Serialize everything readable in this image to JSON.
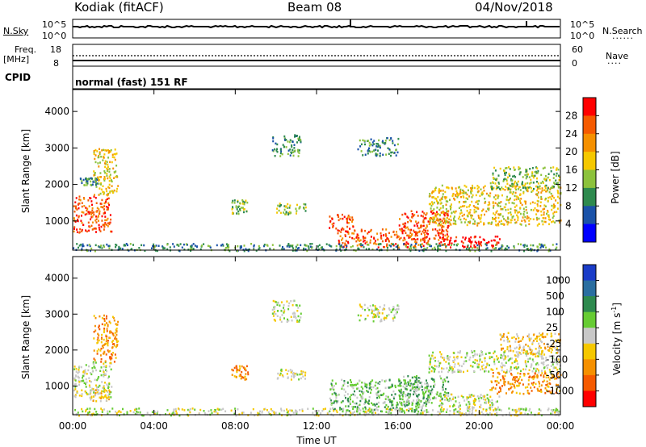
{
  "header": {
    "station": "Kodiak (fitACF)",
    "beam": "Beam 08",
    "date": "04/Nov/2018"
  },
  "nsky_panel": {
    "left_label": "N.Sky",
    "right_label": "N.Search",
    "ticks_left": [
      "10^5",
      "10^0"
    ],
    "ticks_right": [
      "10^5",
      "10^0"
    ]
  },
  "freq_panel": {
    "label_line1": "Freq.",
    "label_line2": "[MHz]",
    "ticks_left": [
      "18",
      "8"
    ],
    "ticks_right": [
      "60",
      "0"
    ],
    "right_label": "Nave"
  },
  "cpid_panel": {
    "label": "CPID",
    "mode": "normal (fast) 151 RF"
  },
  "chart_data": [
    {
      "type": "heatmap",
      "name": "power",
      "ylabel": "Slant Range [km]",
      "yticks": [
        "1000",
        "2000",
        "3000",
        "4000"
      ],
      "ylim": [
        200,
        4600
      ],
      "colorbar_label": "Power [dB]",
      "colorbar_ticks": [
        "4",
        "8",
        "12",
        "16",
        "20",
        "24",
        "28"
      ],
      "colors": [
        "#0000ff",
        "#1a52a8",
        "#2e8a4e",
        "#8cc23c",
        "#f5c800",
        "#f59000",
        "#f55a00",
        "#ff0000"
      ],
      "xticks": [
        "00:00",
        "04:00",
        "08:00",
        "12:00",
        "16:00",
        "20:00",
        "00:00"
      ],
      "xlim_hours": [
        0,
        24
      ],
      "echo_regions": [
        {
          "t": [
            0.0,
            1.9
          ],
          "r": [
            700,
            1700
          ],
          "level": 6
        },
        {
          "t": [
            1.0,
            2.2
          ],
          "r": [
            1700,
            3000
          ],
          "level": 4
        },
        {
          "t": [
            0.3,
            1.2
          ],
          "r": [
            2000,
            2200
          ],
          "level": 2
        },
        {
          "t": [
            7.8,
            8.6
          ],
          "r": [
            1200,
            1600
          ],
          "level": 3
        },
        {
          "t": [
            9.8,
            11.2
          ],
          "r": [
            2800,
            3400
          ],
          "level": 2
        },
        {
          "t": [
            10.0,
            11.5
          ],
          "r": [
            1200,
            1500
          ],
          "level": 3
        },
        {
          "t": [
            12.6,
            13.8
          ],
          "r": [
            800,
            1200
          ],
          "level": 6
        },
        {
          "t": [
            13.0,
            17.5
          ],
          "r": [
            300,
            800
          ],
          "level": 6
        },
        {
          "t": [
            16.0,
            18.5
          ],
          "r": [
            500,
            1300
          ],
          "level": 6
        },
        {
          "t": [
            18.0,
            21.0
          ],
          "r": [
            300,
            600
          ],
          "level": 7
        },
        {
          "t": [
            17.5,
            24.0
          ],
          "r": [
            900,
            2000
          ],
          "level": 4
        },
        {
          "t": [
            20.5,
            24.0
          ],
          "r": [
            1900,
            2500
          ],
          "level": 3
        },
        {
          "t": [
            14.0,
            16.0
          ],
          "r": [
            2800,
            3300
          ],
          "level": 2
        },
        {
          "t": [
            0.0,
            24.0
          ],
          "r": [
            200,
            400
          ],
          "level": 2
        }
      ]
    },
    {
      "type": "heatmap",
      "name": "velocity",
      "ylabel": "Slant Range [km]",
      "yticks": [
        "1000",
        "2000",
        "3000",
        "4000"
      ],
      "ylim": [
        200,
        4600
      ],
      "colorbar_label": "Velocity [m s",
      "colorbar_label_sup": "-1",
      "colorbar_label_end": "]",
      "colorbar_ticks": [
        "1000",
        "500",
        "100",
        "25",
        "-25",
        "-100",
        "-500",
        "-1000"
      ],
      "colors": [
        "#1a3cc8",
        "#2a6ea0",
        "#2e8a4e",
        "#66cc33",
        "#c8c8c8",
        "#f5c800",
        "#f59000",
        "#f55a00",
        "#ff0000"
      ],
      "xticks": [
        "00:00",
        "04:00",
        "08:00",
        "12:00",
        "16:00",
        "20:00",
        "00:00"
      ],
      "xlabel": "Time UT",
      "xlim_hours": [
        0,
        24
      ],
      "echo_regions": [
        {
          "t": [
            0.0,
            1.9
          ],
          "r": [
            700,
            1700
          ],
          "level": 4
        },
        {
          "t": [
            1.0,
            2.2
          ],
          "r": [
            1700,
            3000
          ],
          "level": 6
        },
        {
          "t": [
            0.8,
            1.8
          ],
          "r": [
            600,
            1000
          ],
          "level": 5
        },
        {
          "t": [
            7.8,
            8.6
          ],
          "r": [
            1200,
            1600
          ],
          "level": 6
        },
        {
          "t": [
            9.8,
            11.2
          ],
          "r": [
            2800,
            3400
          ],
          "level": 4
        },
        {
          "t": [
            10.0,
            11.5
          ],
          "r": [
            1200,
            1500
          ],
          "level": 4
        },
        {
          "t": [
            12.6,
            17.5
          ],
          "r": [
            300,
            1200
          ],
          "level": 3
        },
        {
          "t": [
            16.0,
            18.5
          ],
          "r": [
            500,
            1300
          ],
          "level": 3
        },
        {
          "t": [
            18.0,
            21.0
          ],
          "r": [
            300,
            800
          ],
          "level": 4
        },
        {
          "t": [
            17.5,
            24.0
          ],
          "r": [
            1400,
            2000
          ],
          "level": 4
        },
        {
          "t": [
            20.5,
            24.0
          ],
          "r": [
            800,
            1400
          ],
          "level": 6
        },
        {
          "t": [
            21.0,
            24.0
          ],
          "r": [
            1900,
            2500
          ],
          "level": 5
        },
        {
          "t": [
            14.0,
            16.0
          ],
          "r": [
            2800,
            3300
          ],
          "level": 4
        },
        {
          "t": [
            0.0,
            24.0
          ],
          "r": [
            200,
            400
          ],
          "level": 4
        }
      ]
    }
  ]
}
